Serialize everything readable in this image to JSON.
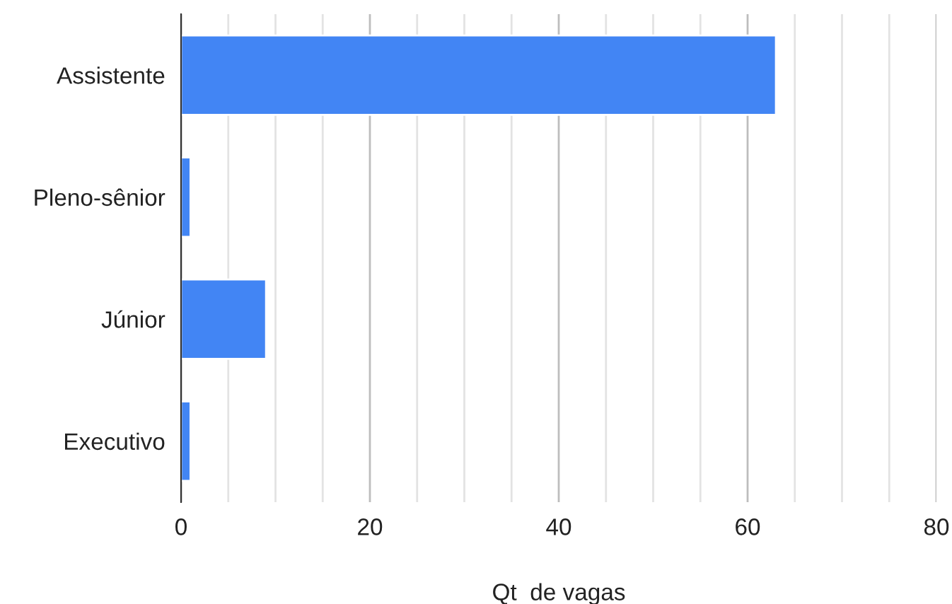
{
  "chart_data": {
    "type": "bar",
    "orientation": "horizontal",
    "xlabel": "Qt  de vagas",
    "categories": [
      "Assistente",
      "Pleno-sênior",
      "Júnior",
      "Executivo"
    ],
    "values": [
      63,
      1,
      9,
      1
    ],
    "color": "#4285f4",
    "xlim": [
      0,
      80
    ],
    "xticks": [
      0,
      {
        "value": 5,
        "label": null
      },
      {
        "value": 10,
        "label": null
      },
      {
        "value": 15,
        "label": null
      },
      20,
      {
        "value": 25,
        "label": null
      },
      {
        "value": 30,
        "label": null
      },
      {
        "value": 35,
        "label": null
      },
      40,
      {
        "value": 45,
        "label": null
      },
      {
        "value": 50,
        "label": null
      },
      {
        "value": 55,
        "label": null
      },
      60,
      {
        "value": 65,
        "label": null
      },
      {
        "value": 70,
        "label": null
      },
      {
        "value": 75,
        "label": null
      },
      80
    ],
    "grid": "x"
  }
}
